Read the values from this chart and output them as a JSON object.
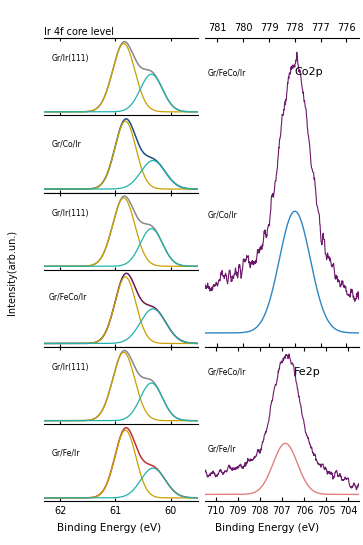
{
  "title": "Ir 4f core level",
  "xlabel": "Binding Energy (eV)",
  "ylabel": "Intensity(arb.un.)",
  "ir_xlim": [
    62.3,
    59.5
  ],
  "ir_xticks": [
    62,
    61,
    60
  ],
  "co2p_xlim": [
    781.5,
    775.5
  ],
  "co2p_top_xticks": [
    781,
    780,
    779,
    778,
    777,
    776
  ],
  "fe2p_xlim": [
    710.5,
    703.5
  ],
  "fe2p_xticks": [
    710,
    709,
    708,
    707,
    706,
    705,
    704
  ],
  "colors": {
    "grey": "#888888",
    "yellow": "#C8A000",
    "teal": "#20B2AA",
    "blue_dark": "#1A4F80",
    "blue_mid": "#2E86C1",
    "dark_red": "#8B0000",
    "maroon": "#6B1A50",
    "red_medium": "#C03030",
    "red_light": "#E08080",
    "purple": "#6B1A6B"
  }
}
